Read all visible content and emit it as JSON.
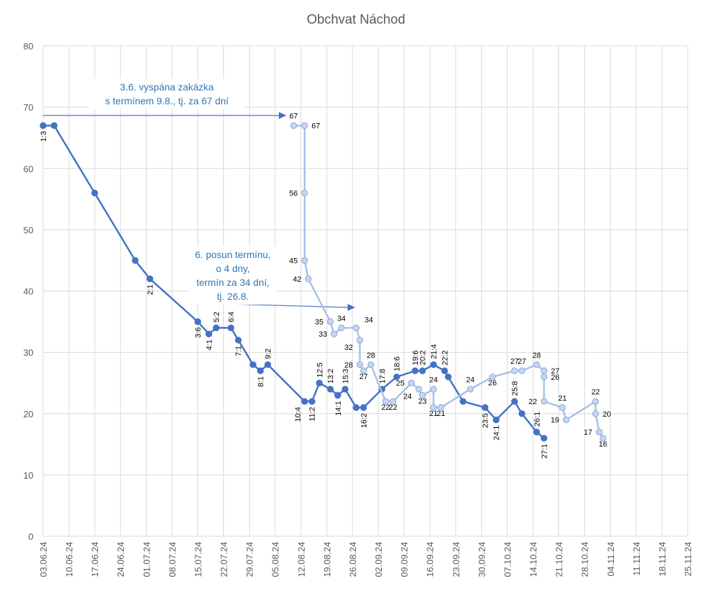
{
  "chart_data": {
    "type": "line",
    "title": "Obchvat Náchod",
    "xlabel": "",
    "ylabel": "",
    "ylim": [
      0,
      80
    ],
    "yticks": [
      0,
      10,
      20,
      30,
      40,
      50,
      60,
      70,
      80
    ],
    "xlim": [
      "2024-06-03",
      "2024-11-25"
    ],
    "xtick_labels": [
      "03.06.24",
      "10.06.24",
      "17.06.24",
      "24.06.24",
      "01.07.24",
      "08.07.24",
      "15.07.24",
      "22.07.24",
      "29.07.24",
      "05.08.24",
      "12.08.24",
      "19.08.24",
      "26.08.24",
      "02.09.24",
      "09.09.24",
      "16.09.24",
      "23.09.24",
      "30.09.24",
      "07.10.24",
      "14.10.24",
      "21.10.24",
      "28.10.24",
      "04.11.24",
      "11.11.24",
      "18.11.24",
      "25.11.24"
    ],
    "grid": true,
    "colors": {
      "dark": "#4472c4",
      "light_fill": "#c5d5f0",
      "light_line": "#a9c0e6",
      "annotation": "#2e75b6"
    },
    "series": [
      {
        "name": "dark",
        "points": [
          [
            "2024-06-03",
            67,
            "1:3",
            "below"
          ],
          [
            "2024-06-06",
            67,
            "",
            ""
          ],
          [
            "2024-06-17",
            56,
            "",
            ""
          ],
          [
            "2024-06-28",
            45,
            "",
            ""
          ],
          [
            "2024-07-02",
            42,
            "2:1",
            "below"
          ],
          [
            "2024-07-15",
            35,
            "3:6",
            "below"
          ],
          [
            "2024-07-18",
            33,
            "4:1",
            "below"
          ],
          [
            "2024-07-20",
            34,
            "5:2",
            "above"
          ],
          [
            "2024-07-24",
            34,
            "6:4",
            "above"
          ],
          [
            "2024-07-26",
            32,
            "7:1",
            "below"
          ],
          [
            "2024-07-30",
            28,
            "",
            ""
          ],
          [
            "2024-08-01",
            27,
            "8:1",
            "below"
          ],
          [
            "2024-08-03",
            28,
            "9:2",
            "above"
          ],
          [
            "2024-08-13",
            22,
            "10:4",
            "below-left"
          ],
          [
            "2024-08-15",
            22,
            "11:2",
            "below"
          ],
          [
            "2024-08-17",
            25,
            "12:5",
            "above"
          ],
          [
            "2024-08-20",
            24,
            "13:2",
            "above"
          ],
          [
            "2024-08-22",
            23,
            "14:1",
            "below"
          ],
          [
            "2024-08-24",
            24,
            "15:3",
            "above"
          ],
          [
            "2024-08-27",
            21,
            "",
            ""
          ],
          [
            "2024-08-29",
            21,
            "16:2",
            "below"
          ],
          [
            "2024-09-03",
            24,
            "17:8",
            "above"
          ],
          [
            "2024-09-07",
            26,
            "18:6",
            "above"
          ],
          [
            "2024-09-12",
            27,
            "19:6",
            "above"
          ],
          [
            "2024-09-14",
            27,
            "20:2",
            "above"
          ],
          [
            "2024-09-17",
            28,
            "21:4",
            "above"
          ],
          [
            "2024-09-20",
            27,
            "22:2",
            "above"
          ],
          [
            "2024-09-21",
            26,
            "",
            ""
          ],
          [
            "2024-09-25",
            22,
            "",
            ""
          ],
          [
            "2024-10-01",
            21,
            "23:5",
            "below"
          ],
          [
            "2024-10-04",
            19,
            "24:1",
            "below"
          ],
          [
            "2024-10-09",
            22,
            "25:8",
            "above"
          ],
          [
            "2024-10-11",
            20,
            "",
            ""
          ],
          [
            "2024-10-15",
            17,
            "26:1",
            "above"
          ],
          [
            "2024-10-17",
            16,
            "27:1",
            "below"
          ]
        ]
      },
      {
        "name": "light",
        "points": [
          [
            "2024-08-10",
            67,
            "67",
            "above"
          ],
          [
            "2024-08-13",
            67,
            "67",
            "right"
          ],
          [
            "2024-08-13",
            56,
            "56",
            "left"
          ],
          [
            "2024-08-13",
            45,
            "45",
            "left"
          ],
          [
            "2024-08-14",
            42,
            "42",
            "left"
          ],
          [
            "2024-08-20",
            35,
            "35",
            "left"
          ],
          [
            "2024-08-21",
            33,
            "33",
            "left"
          ],
          [
            "2024-08-23",
            34,
            "34",
            "above"
          ],
          [
            "2024-08-27",
            34,
            "34",
            "above-right"
          ],
          [
            "2024-08-28",
            32,
            "32",
            "below-left"
          ],
          [
            "2024-08-28",
            28,
            "28",
            "left"
          ],
          [
            "2024-08-29",
            27,
            "27",
            "below"
          ],
          [
            "2024-08-31",
            28,
            "28",
            "above"
          ],
          [
            "2024-09-04",
            22,
            "22",
            "below"
          ],
          [
            "2024-09-06",
            22,
            "22",
            "below"
          ],
          [
            "2024-09-11",
            25,
            "25",
            "left"
          ],
          [
            "2024-09-13",
            24,
            "24",
            "below-left"
          ],
          [
            "2024-09-14",
            23,
            "23",
            "below"
          ],
          [
            "2024-09-17",
            24,
            "24",
            "above"
          ],
          [
            "2024-09-17",
            21,
            "21",
            "below"
          ],
          [
            "2024-09-19",
            21,
            "21",
            "below"
          ],
          [
            "2024-09-27",
            24,
            "24",
            "above"
          ],
          [
            "2024-10-03",
            26,
            "26",
            "below"
          ],
          [
            "2024-10-09",
            27,
            "27",
            "above"
          ],
          [
            "2024-10-11",
            27,
            "27",
            "above"
          ],
          [
            "2024-10-15",
            28,
            "28",
            "above"
          ],
          [
            "2024-10-17",
            27,
            "27",
            "right"
          ],
          [
            "2024-10-17",
            26,
            "26",
            "right"
          ],
          [
            "2024-10-17",
            22,
            "22",
            "left"
          ],
          [
            "2024-10-22",
            21,
            "21",
            "above"
          ],
          [
            "2024-10-23",
            19,
            "19",
            "left"
          ],
          [
            "2024-10-31",
            22,
            "22",
            "above"
          ],
          [
            "2024-10-31",
            20,
            "20",
            "right"
          ],
          [
            "2024-11-01",
            17,
            "17",
            "left"
          ],
          [
            "2024-11-02",
            16,
            "16",
            "below"
          ]
        ]
      }
    ],
    "annotations": [
      {
        "lines": [
          "3.6. vyspána zakázka",
          "s termínem 9.8., tj. za 67 dní"
        ]
      },
      {
        "lines": [
          "6. posun termínu,",
          "o 4 dny,",
          "termín za 34 dní,",
          "tj. 26.8."
        ]
      }
    ]
  }
}
